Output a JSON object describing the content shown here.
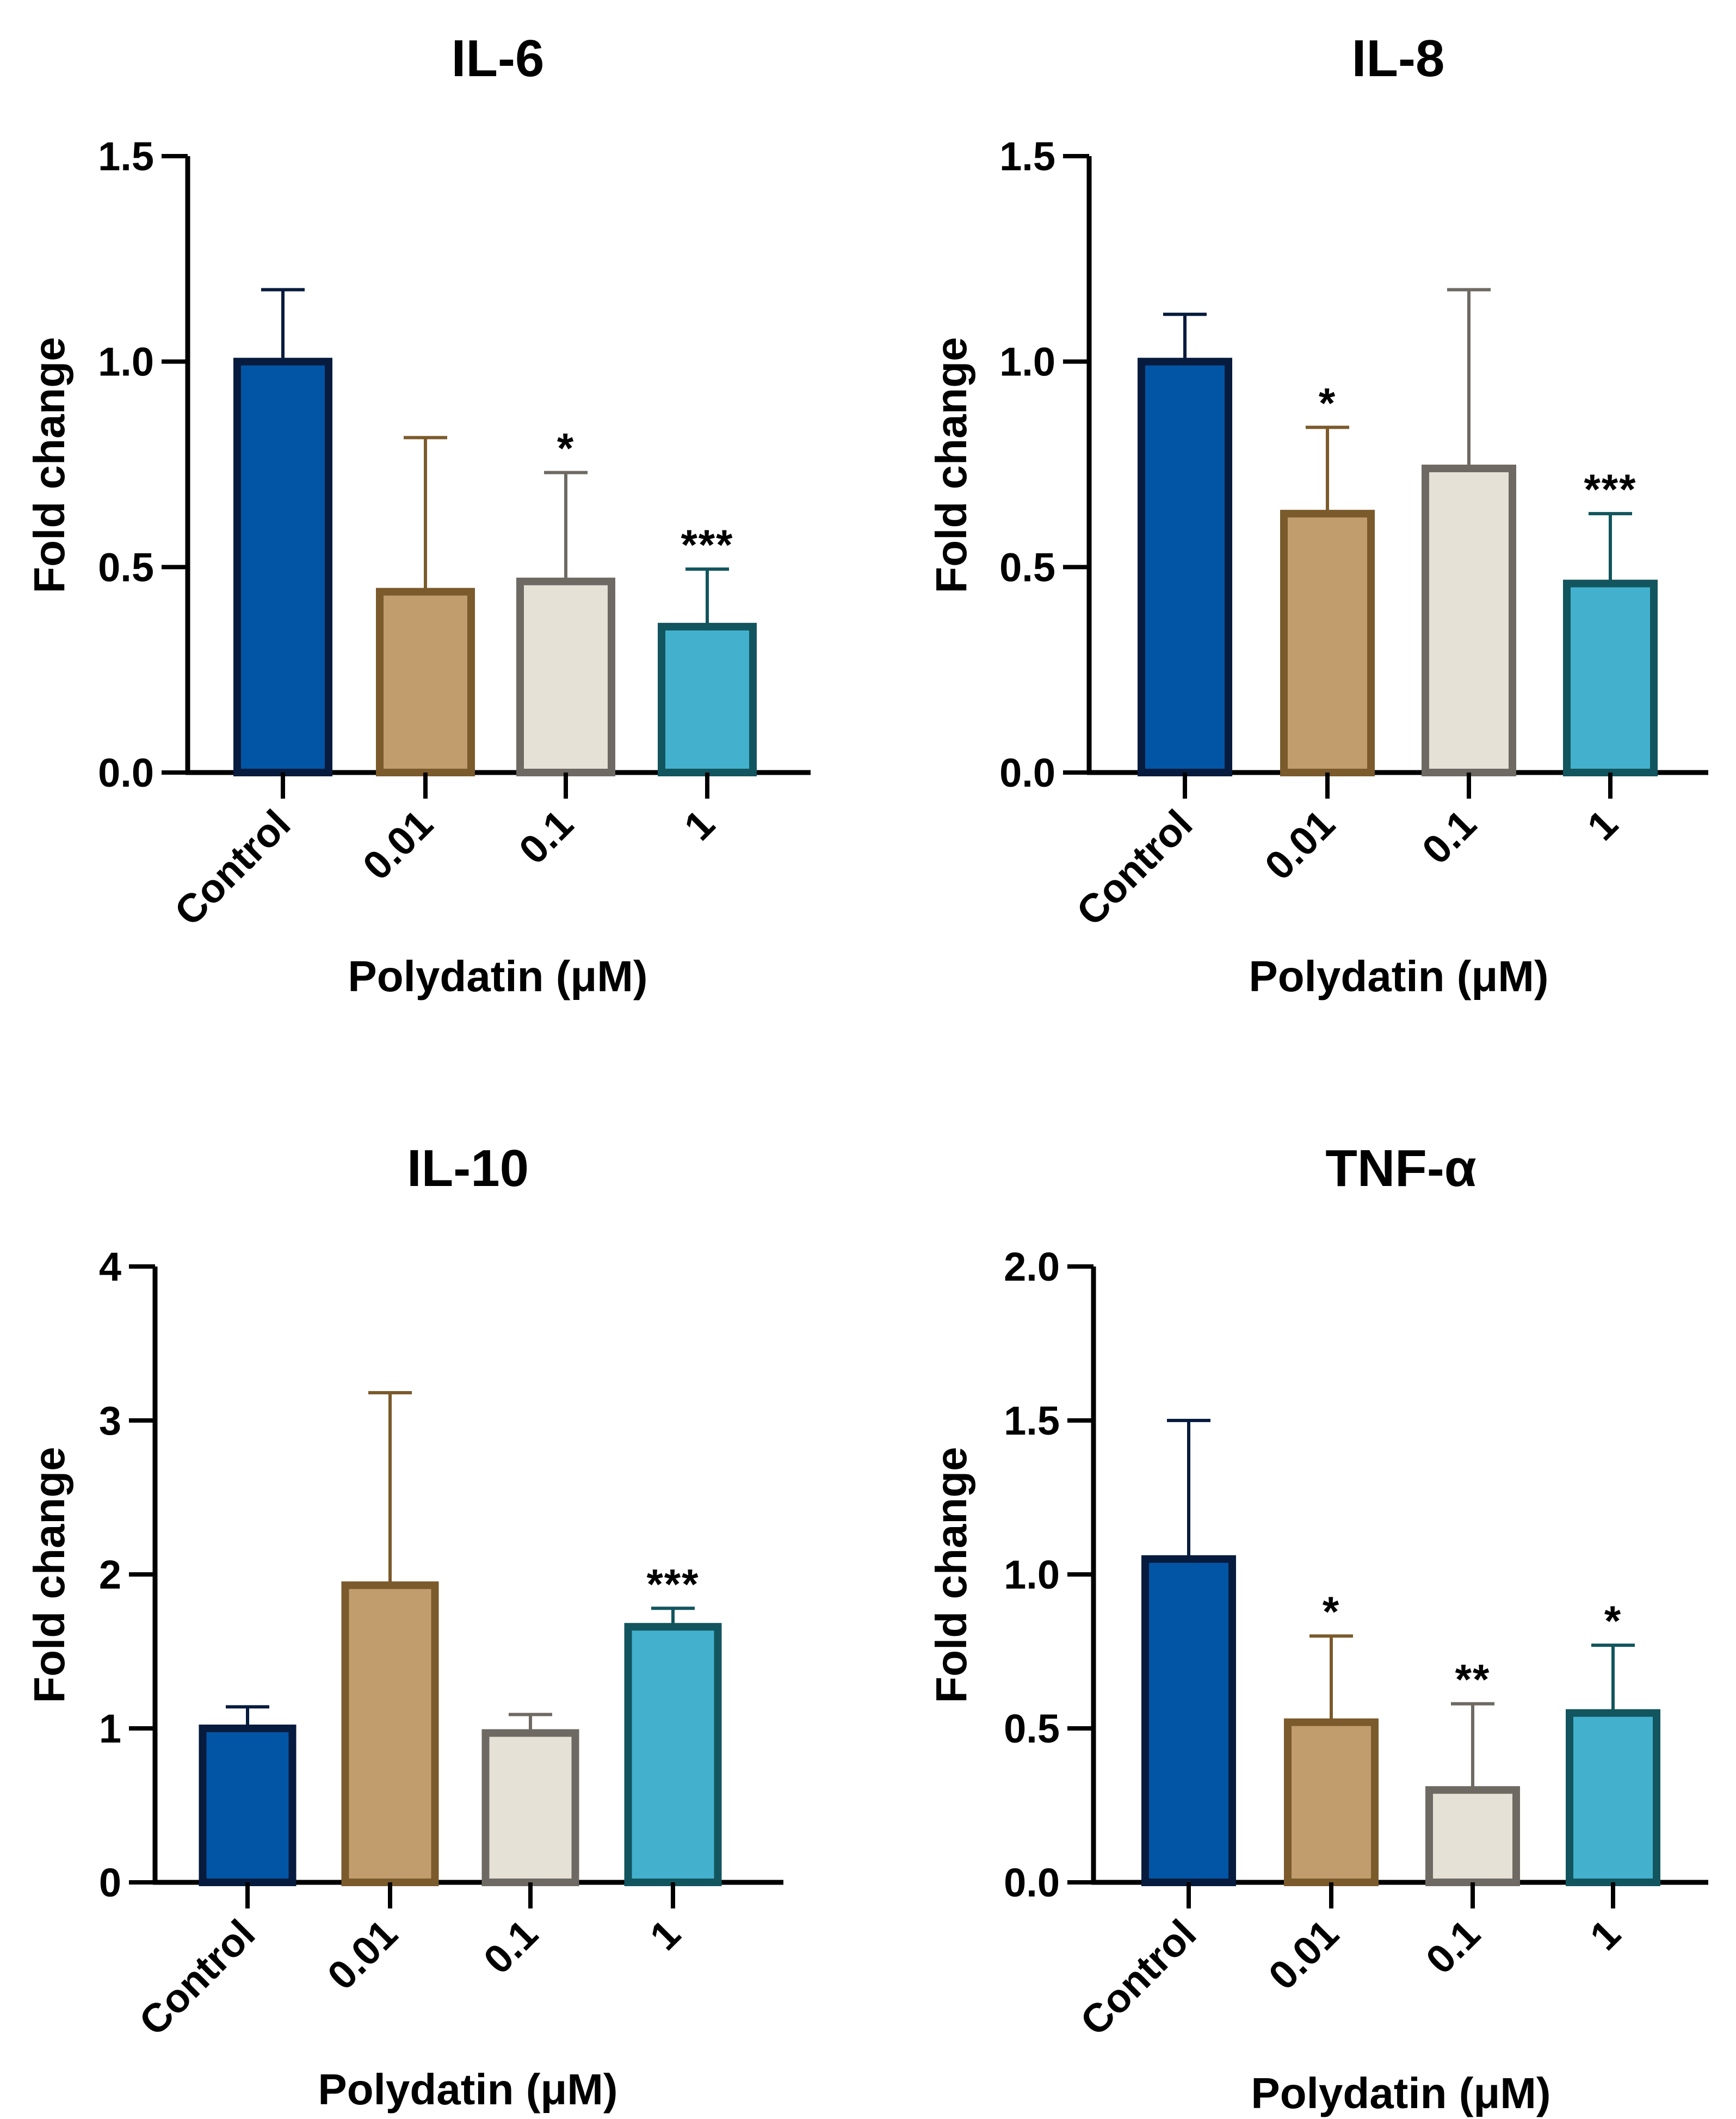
{
  "colors": {
    "fills": [
      "#0255a5",
      "#c19d6e",
      "#e6e1d7",
      "#43b1cd"
    ],
    "strokes": [
      "#061b3d",
      "#7b5a2b",
      "#6e6a63",
      "#12555e"
    ],
    "axis": "#000000"
  },
  "chart_data": [
    {
      "type": "bar",
      "title": "IL-6",
      "xlabel": "Polydatin (μM)",
      "ylabel": "Fold change",
      "categories": [
        "Control",
        "0.01",
        "0.1",
        "1"
      ],
      "values": [
        1.0,
        0.44,
        0.465,
        0.355
      ],
      "errors": [
        0.175,
        0.375,
        0.265,
        0.14
      ],
      "significance": [
        "",
        "",
        "*",
        "***"
      ],
      "ylim": [
        0,
        1.5
      ],
      "yticks": [
        0,
        0.5,
        1.0,
        1.5
      ],
      "ytick_labels": [
        "0.0",
        "0.5",
        "1.0",
        "1.5"
      ],
      "grid": false
    },
    {
      "type": "bar",
      "title": "IL-8",
      "xlabel": "Polydatin (μM)",
      "ylabel": "Fold change",
      "categories": [
        "Control",
        "0.01",
        "0.1",
        "1"
      ],
      "values": [
        1.0,
        0.63,
        0.74,
        0.46
      ],
      "errors": [
        0.115,
        0.21,
        0.435,
        0.17
      ],
      "significance": [
        "",
        "*",
        "",
        "***"
      ],
      "ylim": [
        0,
        1.5
      ],
      "yticks": [
        0,
        0.5,
        1.0,
        1.5
      ],
      "ytick_labels": [
        "0.0",
        "0.5",
        "1.0",
        "1.5"
      ],
      "grid": false
    },
    {
      "type": "bar",
      "title": "IL-10",
      "xlabel": "Polydatin (μM)",
      "ylabel": "Fold change",
      "categories": [
        "Control",
        "0.01",
        "0.1",
        "1"
      ],
      "values": [
        1.0,
        1.93,
        0.97,
        1.66
      ],
      "errors": [
        0.14,
        1.25,
        0.12,
        0.12
      ],
      "significance": [
        "",
        "",
        "",
        "***"
      ],
      "ylim": [
        0,
        4
      ],
      "yticks": [
        0,
        1,
        2,
        3,
        4
      ],
      "ytick_labels": [
        "0",
        "1",
        "2",
        "3",
        "4"
      ],
      "grid": false
    },
    {
      "type": "bar",
      "title": "TNF-α",
      "xlabel": "Polydatin (μM)",
      "ylabel": "Fold change",
      "categories": [
        "Control",
        "0.01",
        "0.1",
        "1"
      ],
      "values": [
        1.05,
        0.52,
        0.3,
        0.55
      ],
      "errors": [
        0.45,
        0.28,
        0.28,
        0.22
      ],
      "significance": [
        "",
        "*",
        "**",
        "*"
      ],
      "ylim": [
        0,
        2.0
      ],
      "yticks": [
        0,
        0.5,
        1.0,
        1.5,
        2.0
      ],
      "ytick_labels": [
        "0.0",
        "0.5",
        "1.0",
        "1.5",
        "2.0"
      ],
      "grid": false
    }
  ]
}
